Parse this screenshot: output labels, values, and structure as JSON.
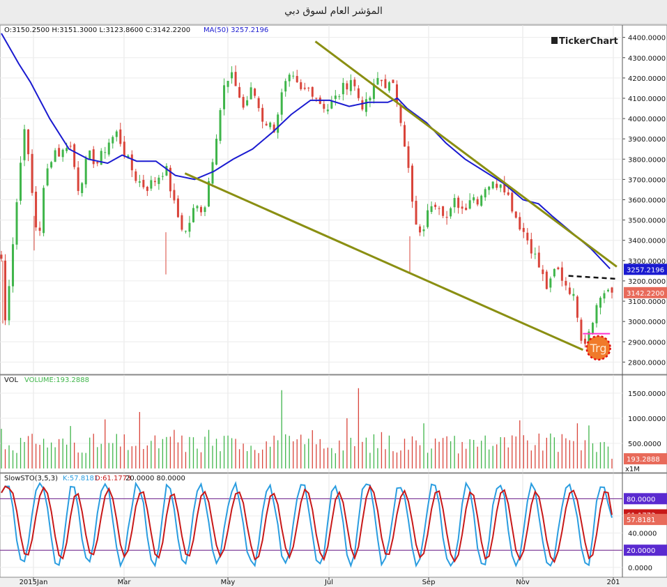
{
  "title": "المؤشر العام لسوق دبي",
  "watermark": "TickerChart",
  "ohlc_text": "O:3150.2500 H:3151.3000 L:3123.8600 C:3142.2200",
  "ma_text": "MA(50) 3257.2196",
  "vol_label": "VOL",
  "vol_text": "VOLUME:193.2888",
  "sto_label": "SlowSTO(3,5,3)",
  "sto_k_text": "K:57.8181",
  "sto_d_text": "D:61.1773",
  "sto_levels_text": "20.0000 80.0000",
  "trg_label": "Trg",
  "vol_unit": "x1M",
  "colors": {
    "up": "#3fb54a",
    "down": "#d9443a",
    "ma": "#1a1ad0",
    "trend": "#8a8f12",
    "k": "#2a9de0",
    "d": "#c81818",
    "level": "#6a1a8a",
    "pink": "#ff33cc"
  },
  "price_badges": {
    "ma": "3257.2196",
    "close": "3142.2200"
  },
  "vol_badge": "193.2888",
  "sto_badges": {
    "k": "57.8181",
    "d": "61.1773",
    "upper": "80.0000",
    "lower": "20.0000"
  },
  "chart_data": [
    {
      "type": "candlestick",
      "x_ticks": [
        "2015Jan",
        "Mar",
        "May",
        "Jul",
        "Sep",
        "Nov",
        "201"
      ],
      "y_ticks": [
        "2800.0000",
        "2900.0000",
        "3000.0000",
        "3100.0000",
        "3200.0000",
        "3300.0000",
        "3400.0000",
        "3500.0000",
        "3600.0000",
        "3700.0000",
        "3800.0000",
        "3900.0000",
        "4000.0000",
        "4100.0000",
        "4200.0000",
        "4300.0000",
        "4400.0000"
      ],
      "ylim": [
        2760,
        4440
      ],
      "close_path": [
        [
          0,
          3310
        ],
        [
          4,
          3000
        ],
        [
          14,
          3500
        ],
        [
          24,
          3980
        ],
        [
          30,
          3700
        ],
        [
          38,
          3380
        ],
        [
          45,
          3700
        ],
        [
          54,
          3850
        ],
        [
          62,
          3820
        ],
        [
          70,
          3900
        ],
        [
          80,
          3650
        ],
        [
          90,
          3820
        ],
        [
          100,
          3780
        ],
        [
          110,
          3880
        ],
        [
          120,
          3930
        ],
        [
          130,
          3800
        ],
        [
          140,
          3700
        ],
        [
          150,
          3660
        ],
        [
          160,
          3700
        ],
        [
          170,
          3760
        ],
        [
          180,
          3550
        ],
        [
          190,
          3430
        ],
        [
          200,
          3560
        ],
        [
          210,
          3560
        ],
        [
          220,
          3850
        ],
        [
          230,
          4150
        ],
        [
          240,
          4210
        ],
        [
          250,
          4050
        ],
        [
          260,
          4150
        ],
        [
          270,
          4000
        ],
        [
          282,
          3950
        ],
        [
          292,
          4150
        ],
        [
          300,
          4200
        ],
        [
          310,
          4130
        ],
        [
          320,
          4150
        ],
        [
          330,
          4080
        ],
        [
          338,
          4050
        ],
        [
          346,
          4100
        ],
        [
          354,
          4150
        ],
        [
          362,
          4200
        ],
        [
          370,
          4100
        ],
        [
          376,
          4050
        ],
        [
          384,
          4130
        ],
        [
          390,
          4200
        ],
        [
          398,
          4170
        ],
        [
          406,
          4150
        ],
        [
          412,
          4050
        ],
        [
          420,
          3800
        ],
        [
          426,
          3550
        ],
        [
          432,
          3400
        ],
        [
          438,
          3480
        ],
        [
          446,
          3600
        ],
        [
          454,
          3580
        ],
        [
          462,
          3500
        ],
        [
          470,
          3600
        ],
        [
          478,
          3550
        ],
        [
          486,
          3620
        ],
        [
          494,
          3600
        ],
        [
          502,
          3680
        ],
        [
          510,
          3670
        ],
        [
          518,
          3700
        ],
        [
          526,
          3600
        ],
        [
          534,
          3500
        ],
        [
          542,
          3430
        ],
        [
          550,
          3350
        ],
        [
          558,
          3250
        ],
        [
          566,
          3150
        ],
        [
          574,
          3270
        ],
        [
          582,
          3200
        ],
        [
          590,
          3150
        ],
        [
          596,
          3050
        ],
        [
          602,
          2880
        ],
        [
          608,
          2960
        ],
        [
          614,
          3050
        ],
        [
          620,
          3120
        ],
        [
          626,
          3160
        ],
        [
          632,
          3140
        ]
      ],
      "series": [
        {
          "name": "MA(50)",
          "values": [
            [
              0,
              4420
            ],
            [
              18,
              4270
            ],
            [
              30,
              4180
            ],
            [
              50,
              4000
            ],
            [
              70,
              3850
            ],
            [
              90,
              3800
            ],
            [
              110,
              3780
            ],
            [
              125,
              3820
            ],
            [
              140,
              3790
            ],
            [
              160,
              3790
            ],
            [
              180,
              3720
            ],
            [
              200,
              3700
            ],
            [
              220,
              3740
            ],
            [
              240,
              3800
            ],
            [
              260,
              3850
            ],
            [
              280,
              3930
            ],
            [
              300,
              4020
            ],
            [
              320,
              4090
            ],
            [
              340,
              4090
            ],
            [
              360,
              4060
            ],
            [
              380,
              4080
            ],
            [
              400,
              4080
            ],
            [
              410,
              4100
            ],
            [
              420,
              4050
            ],
            [
              440,
              3980
            ],
            [
              460,
              3880
            ],
            [
              480,
              3800
            ],
            [
              500,
              3740
            ],
            [
              520,
              3680
            ],
            [
              540,
              3600
            ],
            [
              556,
              3580
            ],
            [
              570,
              3520
            ],
            [
              590,
              3440
            ],
            [
              610,
              3360
            ],
            [
              630,
              3260
            ]
          ]
        }
      ],
      "annotations": {
        "trend_upper": [
          [
            325,
            4380
          ],
          [
            637,
            3270
          ]
        ],
        "trend_lower": [
          [
            190,
            3730
          ],
          [
            602,
            2860
          ]
        ],
        "dashed_resistance": [
          [
            587,
            3225
          ],
          [
            637,
            3210
          ]
        ],
        "support_segment": [
          [
            602,
            2940
          ],
          [
            630,
            2940
          ]
        ],
        "trg_at": [
          618,
          2870
        ]
      }
    },
    {
      "type": "bar",
      "name": "VOLUME",
      "y_ticks": [
        "500.0000",
        "1000.0000",
        "1500.0000"
      ],
      "ylim": [
        0,
        1750
      ],
      "last": 193.2888
    },
    {
      "type": "line",
      "name": "SlowSTO(3,5,3)",
      "y_ticks": [
        "0.0000",
        "20.0000",
        "40.0000",
        "60.0000",
        "80.0000"
      ],
      "ylim": [
        -5,
        103
      ],
      "levels": [
        20,
        80
      ],
      "series": [
        {
          "name": "K",
          "last": 57.8181
        },
        {
          "name": "D",
          "last": 61.1773
        }
      ]
    }
  ]
}
